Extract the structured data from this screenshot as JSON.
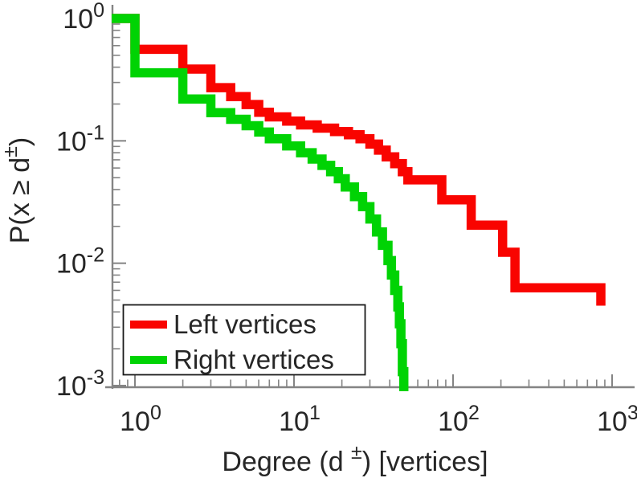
{
  "chart_data": {
    "type": "line",
    "subtype": "step-ccdf-loglog",
    "title": "",
    "xlabel": "Degree (d ±) [vertices]",
    "ylabel": "P(x ≥ d±)",
    "xlabel_parts": {
      "pre": "Degree (d ",
      "sup": "±",
      "post": ") [vertices]"
    },
    "ylabel_parts": {
      "pre": "P(x ≥ d",
      "sup": "±",
      "post": ")"
    },
    "x_axis": {
      "scale": "log",
      "tick_base": "10",
      "major_exponents": [
        0,
        1,
        2,
        3
      ],
      "minor_values": [
        0.8,
        0.9,
        2,
        3,
        4,
        5,
        6,
        7,
        8,
        9,
        20,
        30,
        40,
        50,
        60,
        70,
        80,
        90,
        200,
        300,
        400,
        500,
        600,
        700,
        800,
        900
      ],
      "range": [
        0.71,
        1380
      ]
    },
    "y_axis": {
      "scale": "log",
      "tick_base": "10",
      "major_exponents": [
        0,
        -1,
        -2,
        -3
      ],
      "minor_values": [
        0.9,
        0.8,
        0.7,
        0.6,
        0.5,
        0.4,
        0.3,
        0.2,
        0.09,
        0.08,
        0.07,
        0.06,
        0.05,
        0.04,
        0.03,
        0.02,
        0.009,
        0.008,
        0.007,
        0.006,
        0.005,
        0.004,
        0.003,
        0.002
      ],
      "range": [
        0.0009,
        1.25
      ]
    },
    "grid": false,
    "legend": {
      "position": "bottom-left",
      "entries": [
        {
          "label": "Left vertices",
          "color": "#f90400"
        },
        {
          "label": "Right vertices",
          "color": "#00d304"
        }
      ]
    },
    "series": [
      {
        "name": "Left vertices",
        "color": "#f90400",
        "start_p": 1.0,
        "steps": [
          [
            1,
            0.56
          ],
          [
            2,
            0.386
          ],
          [
            3,
            0.272
          ],
          [
            4,
            0.23
          ],
          [
            5,
            0.198
          ],
          [
            6,
            0.171
          ],
          [
            7,
            0.157
          ],
          [
            9,
            0.145
          ],
          [
            11,
            0.135
          ],
          [
            14,
            0.127
          ],
          [
            18,
            0.119
          ],
          [
            22,
            0.112
          ],
          [
            26,
            0.104
          ],
          [
            30,
            0.094
          ],
          [
            34,
            0.084
          ],
          [
            38,
            0.074
          ],
          [
            43,
            0.065
          ],
          [
            48,
            0.056
          ],
          [
            52,
            0.048
          ],
          [
            85,
            0.033
          ],
          [
            130,
            0.0205
          ],
          [
            205,
            0.0123
          ],
          [
            245,
            0.0063
          ],
          [
            850,
            0.0045
          ]
        ]
      },
      {
        "name": "Right vertices",
        "color": "#00d304",
        "start_p": 1.0,
        "steps": [
          [
            1,
            0.36
          ],
          [
            2,
            0.22
          ],
          [
            3,
            0.17
          ],
          [
            4,
            0.15
          ],
          [
            5,
            0.133
          ],
          [
            6,
            0.118
          ],
          [
            7,
            0.104
          ],
          [
            9,
            0.091
          ],
          [
            11,
            0.08
          ],
          [
            13,
            0.071
          ],
          [
            15,
            0.063
          ],
          [
            17,
            0.056
          ],
          [
            19,
            0.049
          ],
          [
            21,
            0.042
          ],
          [
            24,
            0.035
          ],
          [
            27,
            0.029
          ],
          [
            30,
            0.023
          ],
          [
            33,
            0.018
          ],
          [
            36,
            0.014
          ],
          [
            39,
            0.0105
          ],
          [
            41,
            0.008
          ],
          [
            43,
            0.006
          ],
          [
            45,
            0.0044
          ],
          [
            46,
            0.0032
          ],
          [
            47,
            0.0022
          ],
          [
            48,
            0.0013
          ],
          [
            49,
            0.0008
          ]
        ]
      }
    ]
  },
  "colors": {
    "axis": "#848484",
    "text": "#262626",
    "legend_border": "#1a1a1a",
    "background": "#ffffff"
  }
}
